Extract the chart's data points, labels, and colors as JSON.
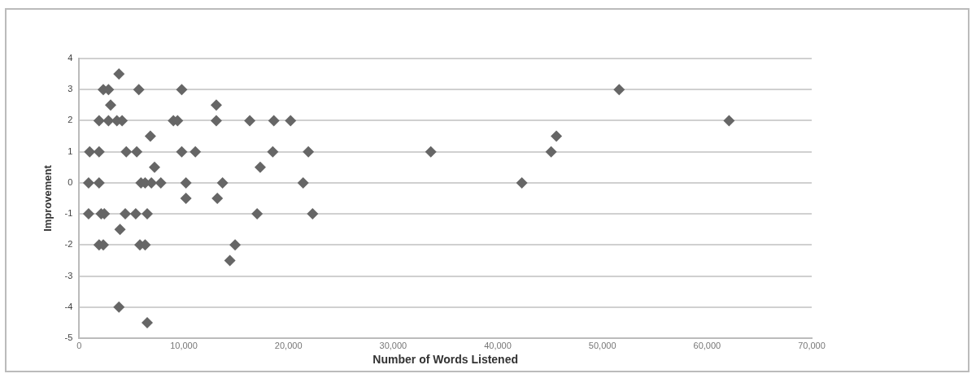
{
  "chart_data": {
    "type": "scatter",
    "xlabel": "Number of Words Listened",
    "ylabel": "Improvement",
    "marker": "diamond",
    "grid": "y",
    "xlim": [
      0,
      70000
    ],
    "ylim": [
      -5,
      4
    ],
    "xticks": [
      0,
      {
        "value": 10000,
        "label": "10,000"
      },
      {
        "value": 20000,
        "label": "20,000"
      },
      {
        "value": 30000,
        "label": "30,000"
      },
      {
        "value": 40000,
        "label": "40,000"
      },
      {
        "value": 50000,
        "label": "50,000"
      },
      {
        "value": 60000,
        "label": "60,000"
      },
      {
        "value": 70000,
        "label": "70,000"
      }
    ],
    "yticks": [
      -5,
      -4,
      -3,
      -2,
      -1,
      0,
      1,
      2,
      3,
      4
    ],
    "series": [
      {
        "color": "#666666",
        "x": [
          3800,
          2300,
          2800,
          5700,
          9800,
          51600,
          3000,
          13100,
          1900,
          2800,
          3600,
          4100,
          9000,
          9400,
          13100,
          16300,
          18600,
          20200,
          62100,
          6800,
          45600,
          1000,
          1900,
          4500,
          5500,
          9800,
          11100,
          18500,
          21900,
          33600,
          45100,
          7200,
          17300,
          900,
          1900,
          5900,
          6300,
          6900,
          7800,
          10200,
          13700,
          21400,
          42300,
          10200,
          13200,
          900,
          2100,
          2400,
          4400,
          5400,
          6500,
          17000,
          22300,
          3900,
          1900,
          2300,
          5800,
          6300,
          14900,
          14400,
          3800,
          6500
        ],
        "values": [
          3.5,
          3,
          3,
          3,
          3,
          3,
          2.5,
          2.5,
          2,
          2,
          2,
          2,
          2,
          2,
          2,
          2,
          2,
          2,
          2,
          1.5,
          1.5,
          1,
          1,
          1,
          1,
          1,
          1,
          1,
          1,
          1,
          1,
          0.5,
          0.5,
          0,
          0,
          0,
          0,
          0,
          0,
          0,
          0,
          0,
          0,
          -0.5,
          -0.5,
          -1,
          -1,
          -1,
          -1,
          -1,
          -1,
          -1,
          -1,
          -1.5,
          -2,
          -2,
          -2,
          -2,
          -2,
          -2.5,
          -4,
          -4.5
        ]
      }
    ]
  }
}
